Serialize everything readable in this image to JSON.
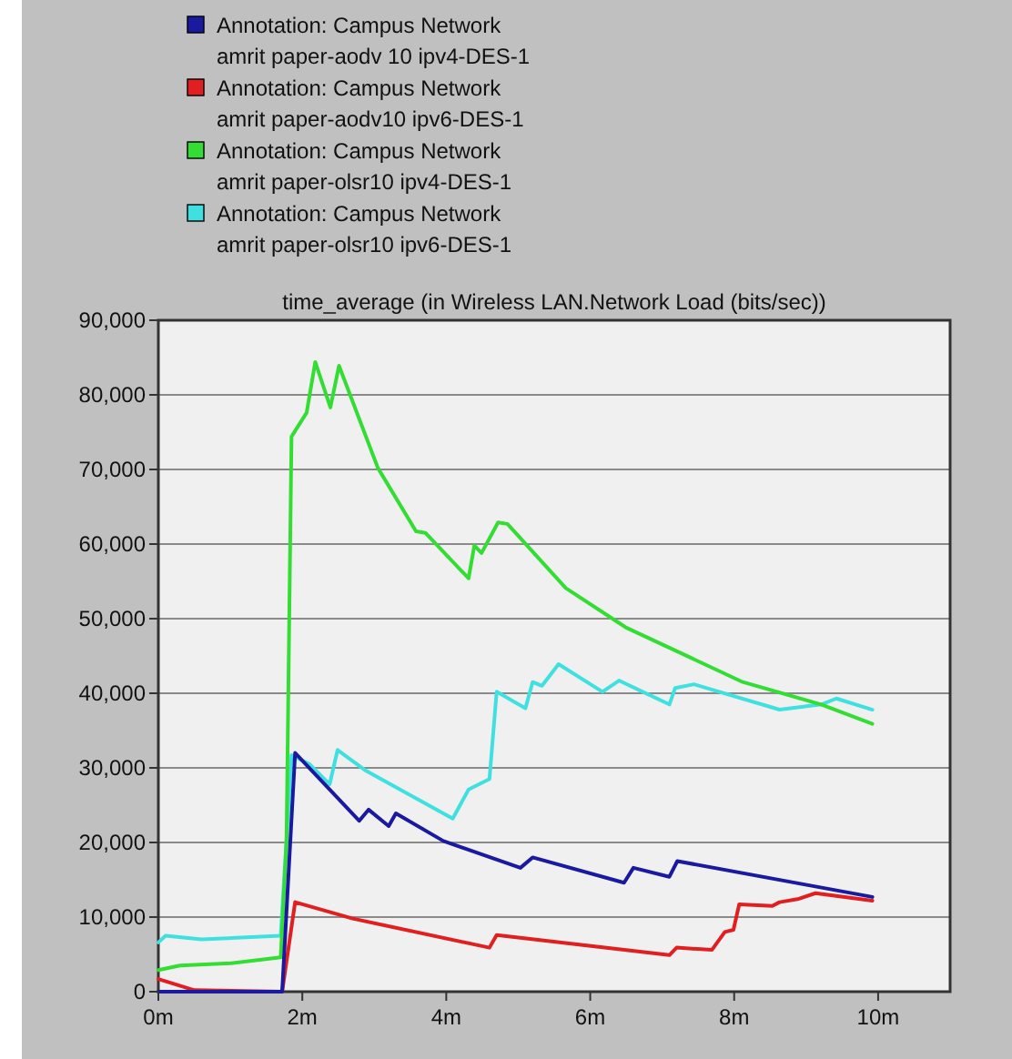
{
  "chart_data": {
    "type": "line",
    "title": "time_average (in Wireless LAN.Network Load (bits/sec))",
    "legend": "top",
    "grid": "y",
    "line_style": "solid",
    "marker": "none",
    "xlim": [
      0,
      11
    ],
    "xticks": [
      {
        "value": 0,
        "label": "0m"
      },
      {
        "value": 2,
        "label": "2m"
      },
      {
        "value": 4,
        "label": "4m"
      },
      {
        "value": 6,
        "label": "6m"
      },
      {
        "value": 8,
        "label": "8m"
      },
      {
        "value": 10,
        "label": "10m"
      }
    ],
    "ylim": [
      0,
      90000
    ],
    "yticks": [
      {
        "value": 0,
        "label": "0"
      },
      {
        "value": 10000,
        "label": "10,000"
      },
      {
        "value": 20000,
        "label": "20,000"
      },
      {
        "value": 30000,
        "label": "30,000"
      },
      {
        "value": 40000,
        "label": "40,000"
      },
      {
        "value": 50000,
        "label": "50,000"
      },
      {
        "value": 60000,
        "label": "60,000"
      },
      {
        "value": 70000,
        "label": "70,000"
      },
      {
        "value": 80000,
        "label": "80,000"
      },
      {
        "value": 90000,
        "label": "90,000"
      }
    ],
    "series": [
      {
        "name": "Annotation: Campus Network\namrit paper-aodv 10 ipv4-DES-1",
        "color": "#1a1aa0",
        "x": [
          0,
          1.72,
          1.9,
          2.79,
          2.92,
          3.2,
          3.3,
          3.96,
          5.03,
          5.2,
          6.47,
          6.6,
          7.1,
          7.21,
          9.92
        ],
        "values": [
          0,
          0,
          32000,
          22900,
          24400,
          22200,
          23900,
          20200,
          16600,
          18000,
          14600,
          16600,
          15400,
          17500,
          12700
        ]
      },
      {
        "name": "Annotation: Campus Network\namrit paper-aodv10 ipv6-DES-1",
        "color": "#e02020",
        "x": [
          0,
          0.5,
          1.72,
          1.9,
          2.7,
          4.6,
          4.7,
          7.1,
          7.2,
          7.69,
          7.87,
          7.99,
          8.07,
          8.53,
          8.63,
          8.88,
          9.13,
          9.92
        ],
        "values": [
          1700,
          200,
          0,
          12000,
          9800,
          5900,
          7600,
          4900,
          5900,
          5600,
          8000,
          8300,
          11700,
          11500,
          12000,
          12400,
          13200,
          12200
        ]
      },
      {
        "name": "Annotation: Campus Network\namrit paper-olsr10 ipv4-DES-1",
        "color": "#33dd33",
        "x": [
          0,
          0.3,
          1,
          1.7,
          1.78,
          1.85,
          2.06,
          2.18,
          2.39,
          2.51,
          3.05,
          3.58,
          3.71,
          4.31,
          4.39,
          4.49,
          4.72,
          4.85,
          5.66,
          6.42,
          6.5,
          8.12,
          9.21,
          9.92
        ],
        "values": [
          2900,
          3500,
          3800,
          4600,
          20000,
          74400,
          77600,
          84400,
          78300,
          83900,
          70200,
          61700,
          61500,
          55400,
          59800,
          58800,
          62900,
          62700,
          54100,
          49300,
          48800,
          41500,
          38500,
          35900
        ]
      },
      {
        "name": "Annotation: Campus Network\namrit paper-olsr10 ipv6-DES-1",
        "color": "#40e0e0",
        "x": [
          0,
          0.1,
          0.6,
          1.7,
          1.85,
          2.1,
          2.38,
          2.49,
          2.87,
          4.09,
          4.31,
          4.6,
          4.7,
          5.1,
          5.2,
          5.33,
          5.56,
          6.17,
          6.4,
          7.1,
          7.18,
          7.44,
          8.63,
          9.21,
          9.42,
          9.92
        ],
        "values": [
          6600,
          7500,
          7000,
          7500,
          31700,
          30500,
          27800,
          32400,
          29700,
          23200,
          27100,
          28500,
          40200,
          38000,
          41500,
          41000,
          43900,
          40200,
          41700,
          38500,
          40700,
          41200,
          37800,
          38500,
          39300,
          37800
        ]
      }
    ]
  }
}
